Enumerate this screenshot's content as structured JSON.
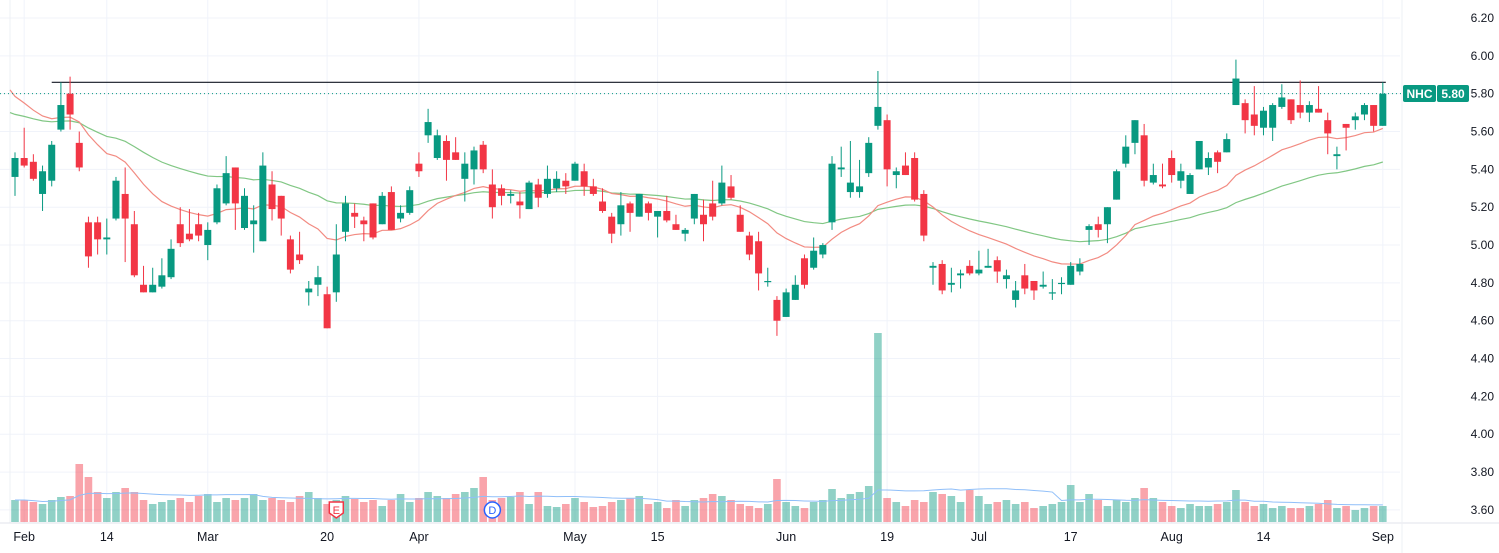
{
  "chart_data": {
    "type": "candlestick",
    "symbol": "NHC",
    "last_price": "5.80",
    "price_axis": {
      "ticks": [
        "6.20",
        "6.00",
        "5.80",
        "5.60",
        "5.40",
        "5.20",
        "5.00",
        "4.80",
        "4.60",
        "4.40",
        "4.20",
        "4.00",
        "3.80",
        "3.60"
      ],
      "range": [
        3.6,
        6.2
      ]
    },
    "time_axis": [
      {
        "label": "Feb",
        "index": 1
      },
      {
        "label": "14",
        "index": 10
      },
      {
        "label": "Mar",
        "index": 21
      },
      {
        "label": "20",
        "index": 34
      },
      {
        "label": "Apr",
        "index": 44
      },
      {
        "label": "May",
        "index": 61
      },
      {
        "label": "15",
        "index": 70
      },
      {
        "label": "Jun",
        "index": 84
      },
      {
        "label": "19",
        "index": 95
      },
      {
        "label": "Jul",
        "index": 105
      },
      {
        "label": "17",
        "index": 115
      },
      {
        "label": "Aug",
        "index": 126
      },
      {
        "label": "14",
        "index": 136
      },
      {
        "label": "Sep",
        "index": 149
      }
    ],
    "resistance_level": 5.86,
    "colors": {
      "up": "#089981",
      "down": "#f23645",
      "ma_fast": "#f28b82",
      "ma_slow": "#81c784",
      "volume_ma": "#90bff9",
      "resistance": "#131722"
    },
    "indicators": [
      {
        "type": "ema",
        "period": 20,
        "seed": 5.82,
        "color_key": "ma_fast"
      },
      {
        "type": "ema",
        "period": 50,
        "seed": 5.7,
        "color_key": "ma_slow"
      },
      {
        "type": "volume_sma",
        "period": 20,
        "color_key": "volume_ma"
      }
    ],
    "events": [
      {
        "label": "E",
        "index": 35,
        "kind": "earnings",
        "color": "#f23645"
      },
      {
        "label": "D",
        "index": 52,
        "kind": "dividend",
        "color": "#2962ff"
      }
    ],
    "ohlc": [
      [
        5.36,
        5.49,
        5.26,
        5.46
      ],
      [
        5.46,
        5.62,
        5.41,
        5.42
      ],
      [
        5.44,
        5.48,
        5.34,
        5.35
      ],
      [
        5.27,
        5.42,
        5.18,
        5.39
      ],
      [
        5.34,
        5.55,
        5.31,
        5.53
      ],
      [
        5.61,
        5.86,
        5.6,
        5.74
      ],
      [
        5.8,
        5.89,
        5.61,
        5.69
      ],
      [
        5.54,
        5.6,
        5.39,
        5.41
      ],
      [
        5.12,
        5.15,
        4.88,
        4.94
      ],
      [
        5.12,
        5.15,
        4.95,
        5.03
      ],
      [
        5.03,
        5.14,
        4.95,
        5.04
      ],
      [
        5.14,
        5.36,
        5.13,
        5.34
      ],
      [
        5.27,
        5.41,
        4.91,
        5.14
      ],
      [
        5.11,
        5.18,
        4.83,
        4.84
      ],
      [
        4.79,
        4.89,
        4.75,
        4.75
      ],
      [
        4.75,
        4.88,
        4.75,
        4.79
      ],
      [
        4.78,
        4.93,
        4.77,
        4.84
      ],
      [
        4.83,
        5.03,
        4.82,
        4.98
      ],
      [
        5.11,
        5.2,
        4.99,
        5.01
      ],
      [
        5.06,
        5.19,
        5.02,
        5.03
      ],
      [
        5.11,
        5.17,
        5.02,
        5.05
      ],
      [
        5.0,
        5.12,
        4.92,
        5.08
      ],
      [
        5.12,
        5.32,
        5.11,
        5.3
      ],
      [
        5.22,
        5.47,
        5.21,
        5.38
      ],
      [
        5.41,
        5.41,
        5.08,
        5.22
      ],
      [
        5.09,
        5.3,
        5.08,
        5.26
      ],
      [
        5.11,
        5.21,
        4.96,
        5.13
      ],
      [
        5.02,
        5.49,
        5.02,
        5.42
      ],
      [
        5.32,
        5.39,
        5.13,
        5.19
      ],
      [
        5.26,
        5.26,
        5.05,
        5.14
      ],
      [
        5.03,
        5.05,
        4.85,
        4.87
      ],
      [
        4.95,
        5.07,
        4.9,
        4.92
      ],
      [
        4.75,
        4.81,
        4.68,
        4.77
      ],
      [
        4.79,
        4.89,
        4.73,
        4.83
      ],
      [
        4.74,
        4.78,
        4.56,
        4.56
      ],
      [
        4.75,
        5.11,
        4.7,
        4.95
      ],
      [
        5.07,
        5.26,
        5.02,
        5.22
      ],
      [
        5.17,
        5.22,
        5.09,
        5.15
      ],
      [
        5.13,
        5.15,
        5.02,
        5.11
      ],
      [
        5.22,
        5.22,
        5.03,
        5.04
      ],
      [
        5.11,
        5.28,
        5.11,
        5.26
      ],
      [
        5.28,
        5.31,
        5.08,
        5.08
      ],
      [
        5.14,
        5.21,
        5.12,
        5.17
      ],
      [
        5.17,
        5.31,
        5.16,
        5.29
      ],
      [
        5.43,
        5.49,
        5.36,
        5.39
      ],
      [
        5.58,
        5.72,
        5.54,
        5.65
      ],
      [
        5.46,
        5.61,
        5.45,
        5.58
      ],
      [
        5.55,
        5.58,
        5.34,
        5.45
      ],
      [
        5.49,
        5.57,
        5.45,
        5.45
      ],
      [
        5.35,
        5.49,
        5.23,
        5.43
      ],
      [
        5.4,
        5.52,
        5.32,
        5.5
      ],
      [
        5.53,
        5.55,
        5.38,
        5.4
      ],
      [
        5.32,
        5.4,
        5.14,
        5.2
      ],
      [
        5.3,
        5.32,
        5.21,
        5.26
      ],
      [
        5.26,
        5.29,
        5.22,
        5.27
      ],
      [
        5.23,
        5.28,
        5.14,
        5.21
      ],
      [
        5.19,
        5.34,
        5.19,
        5.33
      ],
      [
        5.32,
        5.35,
        5.2,
        5.25
      ],
      [
        5.27,
        5.42,
        5.25,
        5.35
      ],
      [
        5.3,
        5.39,
        5.28,
        5.35
      ],
      [
        5.34,
        5.38,
        5.27,
        5.31
      ],
      [
        5.34,
        5.44,
        5.34,
        5.43
      ],
      [
        5.39,
        5.43,
        5.26,
        5.31
      ],
      [
        5.31,
        5.35,
        5.26,
        5.27
      ],
      [
        5.23,
        5.3,
        5.17,
        5.18
      ],
      [
        5.15,
        5.17,
        5.01,
        5.06
      ],
      [
        5.11,
        5.28,
        5.05,
        5.21
      ],
      [
        5.22,
        5.23,
        5.07,
        5.17
      ],
      [
        5.15,
        5.27,
        5.15,
        5.27
      ],
      [
        5.22,
        5.23,
        5.13,
        5.17
      ],
      [
        5.15,
        5.18,
        5.04,
        5.18
      ],
      [
        5.18,
        5.26,
        5.12,
        5.13
      ],
      [
        5.11,
        5.16,
        5.08,
        5.08
      ],
      [
        5.06,
        5.09,
        5.02,
        5.08
      ],
      [
        5.14,
        5.27,
        5.11,
        5.27
      ],
      [
        5.16,
        5.24,
        5.02,
        5.11
      ],
      [
        5.22,
        5.34,
        5.13,
        5.15
      ],
      [
        5.22,
        5.42,
        5.21,
        5.33
      ],
      [
        5.31,
        5.37,
        5.24,
        5.25
      ],
      [
        5.16,
        5.21,
        5.07,
        5.07
      ],
      [
        5.05,
        5.07,
        4.92,
        4.95
      ],
      [
        5.02,
        5.07,
        4.76,
        4.85
      ],
      [
        4.81,
        4.88,
        4.78,
        4.81
      ],
      [
        4.71,
        4.73,
        4.52,
        4.6
      ],
      [
        4.62,
        4.77,
        4.62,
        4.75
      ],
      [
        4.71,
        4.84,
        4.71,
        4.79
      ],
      [
        4.93,
        4.95,
        4.77,
        4.79
      ],
      [
        4.88,
        5.04,
        4.87,
        4.97
      ],
      [
        4.95,
        5.01,
        4.93,
        5.0
      ],
      [
        5.12,
        5.47,
        5.08,
        5.43
      ],
      [
        5.4,
        5.52,
        5.36,
        5.41
      ],
      [
        5.28,
        5.55,
        5.25,
        5.33
      ],
      [
        5.28,
        5.45,
        5.25,
        5.31
      ],
      [
        5.38,
        5.57,
        5.36,
        5.54
      ],
      [
        5.63,
        5.92,
        5.61,
        5.73
      ],
      [
        5.66,
        5.69,
        5.31,
        5.4
      ],
      [
        5.37,
        5.41,
        5.3,
        5.39
      ],
      [
        5.42,
        5.49,
        5.37,
        5.37
      ],
      [
        5.46,
        5.49,
        5.23,
        5.24
      ],
      [
        5.27,
        5.29,
        5.02,
        5.05
      ],
      [
        4.88,
        4.91,
        4.79,
        4.89
      ],
      [
        4.9,
        4.92,
        4.74,
        4.76
      ],
      [
        4.79,
        4.88,
        4.75,
        4.8
      ],
      [
        4.84,
        4.87,
        4.77,
        4.85
      ],
      [
        4.89,
        4.92,
        4.84,
        4.85
      ],
      [
        4.85,
        4.97,
        4.84,
        4.87
      ],
      [
        4.88,
        4.98,
        4.88,
        4.89
      ],
      [
        4.92,
        4.94,
        4.8,
        4.86
      ],
      [
        4.82,
        4.87,
        4.77,
        4.84
      ],
      [
        4.71,
        4.81,
        4.67,
        4.76
      ],
      [
        4.84,
        4.9,
        4.74,
        4.77
      ],
      [
        4.81,
        4.81,
        4.71,
        4.76
      ],
      [
        4.78,
        4.86,
        4.77,
        4.79
      ],
      [
        4.75,
        4.82,
        4.71,
        4.75
      ],
      [
        4.8,
        4.83,
        4.74,
        4.8
      ],
      [
        4.79,
        4.91,
        4.79,
        4.89
      ],
      [
        4.86,
        4.93,
        4.84,
        4.9
      ],
      [
        5.08,
        5.11,
        5.0,
        5.1
      ],
      [
        5.11,
        5.15,
        5.04,
        5.08
      ],
      [
        5.11,
        5.2,
        5.01,
        5.2
      ],
      [
        5.24,
        5.4,
        5.24,
        5.39
      ],
      [
        5.43,
        5.58,
        5.41,
        5.52
      ],
      [
        5.54,
        5.66,
        5.48,
        5.66
      ],
      [
        5.58,
        5.64,
        5.31,
        5.34
      ],
      [
        5.33,
        5.43,
        5.32,
        5.37
      ],
      [
        5.32,
        5.43,
        5.3,
        5.31
      ],
      [
        5.46,
        5.5,
        5.33,
        5.37
      ],
      [
        5.34,
        5.43,
        5.3,
        5.39
      ],
      [
        5.27,
        5.38,
        5.27,
        5.37
      ],
      [
        5.4,
        5.55,
        5.4,
        5.55
      ],
      [
        5.41,
        5.49,
        5.37,
        5.46
      ],
      [
        5.49,
        5.5,
        5.38,
        5.44
      ],
      [
        5.49,
        5.59,
        5.49,
        5.56
      ],
      [
        5.74,
        5.98,
        5.74,
        5.88
      ],
      [
        5.75,
        5.77,
        5.59,
        5.66
      ],
      [
        5.69,
        5.84,
        5.58,
        5.63
      ],
      [
        5.62,
        5.73,
        5.58,
        5.71
      ],
      [
        5.62,
        5.75,
        5.55,
        5.74
      ],
      [
        5.73,
        5.85,
        5.72,
        5.78
      ],
      [
        5.77,
        5.77,
        5.64,
        5.66
      ],
      [
        5.74,
        5.87,
        5.67,
        5.7
      ],
      [
        5.7,
        5.76,
        5.65,
        5.74
      ],
      [
        5.72,
        5.84,
        5.7,
        5.7
      ],
      [
        5.66,
        5.7,
        5.48,
        5.59
      ],
      [
        5.47,
        5.52,
        5.4,
        5.48
      ],
      [
        5.64,
        5.64,
        5.5,
        5.62
      ],
      [
        5.66,
        5.7,
        5.61,
        5.68
      ],
      [
        5.69,
        5.75,
        5.66,
        5.74
      ],
      [
        5.74,
        5.74,
        5.6,
        5.63
      ],
      [
        5.63,
        5.86,
        5.63,
        5.8
      ]
    ],
    "volume": [
      22,
      22,
      20,
      18,
      22,
      25,
      26,
      58,
      45,
      30,
      24,
      30,
      34,
      30,
      22,
      18,
      20,
      22,
      24,
      20,
      26,
      28,
      20,
      24,
      22,
      24,
      28,
      22,
      24,
      22,
      20,
      26,
      30,
      24,
      18,
      22,
      26,
      23,
      20,
      22,
      16,
      22,
      28,
      20,
      24,
      30,
      26,
      24,
      28,
      30,
      34,
      45,
      22,
      24,
      25,
      30,
      18,
      30,
      16,
      15,
      18,
      24,
      20,
      15,
      16,
      20,
      22,
      24,
      26,
      18,
      20,
      14,
      22,
      16,
      22,
      24,
      28,
      26,
      22,
      18,
      16,
      14,
      18,
      43,
      20,
      16,
      14,
      20,
      22,
      33,
      24,
      28,
      30,
      36,
      189,
      24,
      20,
      16,
      22,
      20,
      30,
      28,
      26,
      20,
      32,
      26,
      18,
      20,
      22,
      18,
      20,
      14,
      16,
      18,
      20,
      37,
      20,
      28,
      22,
      16,
      22,
      20,
      24,
      34,
      24,
      20,
      16,
      14,
      18,
      16,
      16,
      18,
      20,
      32,
      20,
      16,
      18,
      14,
      16,
      14,
      14,
      16,
      18,
      22,
      14,
      16,
      12,
      14,
      16,
      16
    ]
  }
}
